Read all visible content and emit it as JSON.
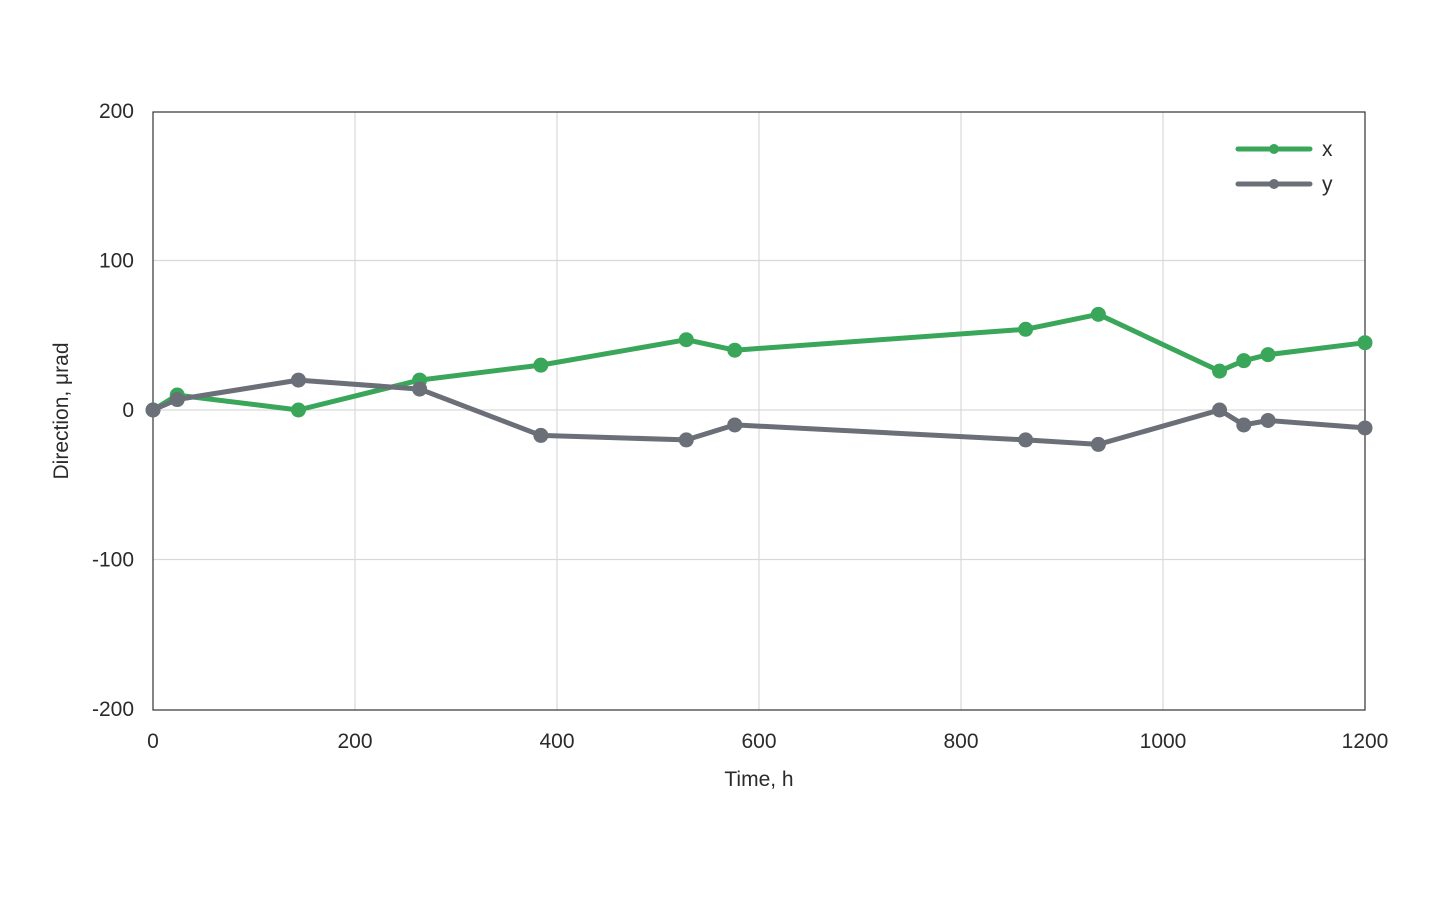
{
  "chart_data": {
    "type": "line",
    "xlabel": "Time, h",
    "ylabel": "Direction, μrad",
    "xlim": [
      0,
      1200
    ],
    "ylim": [
      -200,
      200
    ],
    "xticks": [
      0,
      200,
      400,
      600,
      800,
      1000,
      1200
    ],
    "xtick_labels": [
      "0",
      "200",
      "400",
      "600",
      "800",
      "1000",
      "1200"
    ],
    "yticks": [
      200,
      100,
      0,
      -100,
      -200
    ],
    "ytick_labels": [
      "200",
      "100",
      "0",
      "-100",
      "-200"
    ],
    "grid": true,
    "legend_position": "top-right",
    "series": [
      {
        "name": "x",
        "color": "#3aa65a",
        "x": [
          0,
          24,
          144,
          264,
          384,
          528,
          576,
          864,
          936,
          1056,
          1080,
          1104,
          1200
        ],
        "y": [
          0,
          10,
          0,
          20,
          30,
          47,
          40,
          54,
          64,
          26,
          33,
          37,
          45
        ]
      },
      {
        "name": "y",
        "color": "#6b6f78",
        "x": [
          0,
          24,
          144,
          264,
          384,
          528,
          576,
          864,
          936,
          1056,
          1080,
          1104,
          1200
        ],
        "y": [
          0,
          7,
          20,
          14,
          -17,
          -20,
          -10,
          -20,
          -23,
          0,
          -10,
          -7,
          -12
        ]
      }
    ]
  }
}
